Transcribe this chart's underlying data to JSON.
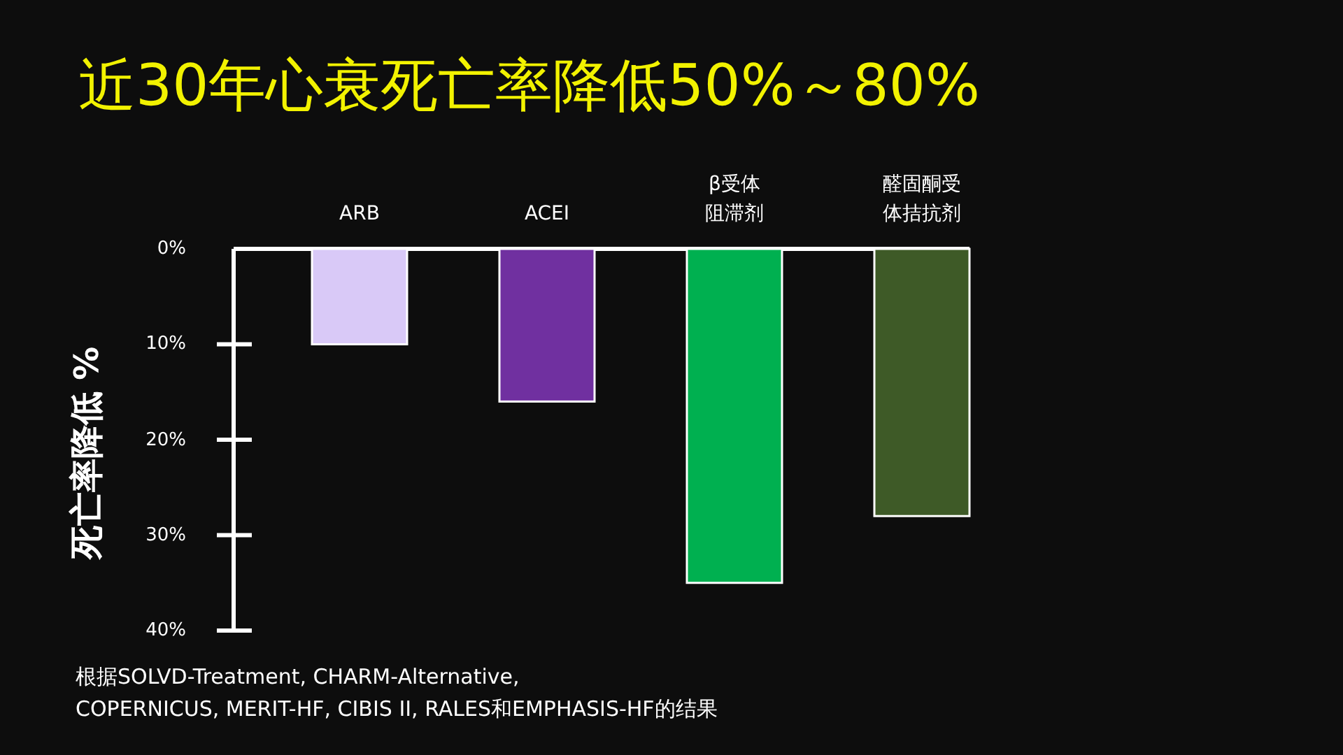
{
  "chart_data": {
    "type": "bar",
    "title": "近30年心衰死亡率降低50%～80%",
    "ylabel": "死亡率降低 %",
    "categories": [
      "ARB",
      "ACEI",
      "β受体阻滞剂",
      "醛固酮受体拮抗剂"
    ],
    "values": [
      10,
      16,
      35,
      28
    ],
    "colors": [
      "#d9c9f7",
      "#7030a0",
      "#00b050",
      "#3e5a27"
    ],
    "ylim": [
      40,
      0
    ],
    "yticks": [
      {
        "value": 0,
        "label": "0%"
      },
      {
        "value": 10,
        "label": "10%"
      },
      {
        "value": 20,
        "label": "20%"
      },
      {
        "value": 30,
        "label": "30%"
      },
      {
        "value": 40,
        "label": "40%"
      }
    ],
    "annotations": [
      "根据SOLVD-Treatment, CHARM-Alternative,\nCOPERNICUS, MERIT-HF, CIBIS II, RALES和EMPHASIS-HF的结果"
    ]
  }
}
